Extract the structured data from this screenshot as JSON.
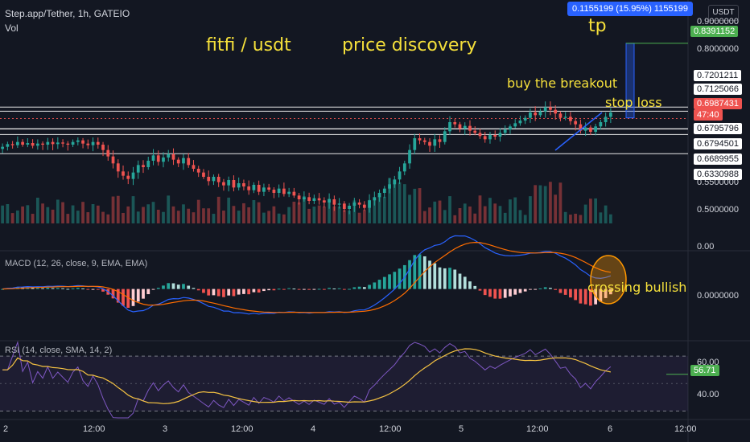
{
  "header": {
    "symbol": "Step.app/Tether, 1h, GATEIO",
    "volume_label": "Vol",
    "currency": "USDT"
  },
  "tooltip": {
    "text": "0.1155199 (15.95%) 1155199"
  },
  "annotations": {
    "title": "fitfi / usdt",
    "subtitle": "price discovery",
    "tp": "tp",
    "buy": "buy the breakout",
    "stop": "stop loss",
    "cross": "crossing bullish"
  },
  "indicators": {
    "macd_label": "MACD (12, 26, close, 9, EMA, EMA)",
    "rsi_label": "RSI (14, close, SMA, 14, 2)",
    "rsi_value": "56.71"
  },
  "price_tags": {
    "tp": "0.8391152",
    "p1": "0.7201211",
    "p2": "0.7125066",
    "current": "0.6987431",
    "countdown": "47:40",
    "p3": "0.6795796",
    "p4": "0.6794501",
    "p5": "0.6689955",
    "p6": "0.6330988"
  },
  "axis": {
    "price_ticks": [
      "0.9000000",
      "0.8000000",
      "0.5500000",
      "0.5000000"
    ],
    "macd_ticks": [
      "0.00",
      "0.0000000"
    ],
    "rsi_ticks": [
      "60.00",
      "40.00"
    ],
    "time_ticks": [
      "2",
      "12:00",
      "3",
      "12:00",
      "4",
      "12:00",
      "5",
      "12:00",
      "6",
      "12:00"
    ]
  },
  "colors": {
    "background": "#131722",
    "up": "#26a69a",
    "down": "#ef5350",
    "macd_line": "#2962ff",
    "signal_line": "#ff6d00",
    "rsi_line": "#7e57c2",
    "rsi_ma": "#f5c242",
    "annotation": "#f5e03b"
  },
  "chart_data": {
    "type": "candlestick",
    "symbol": "Step.app/Tether",
    "interval": "1h",
    "exchange": "GATEIO",
    "price_range": [
      0.47,
      0.92
    ],
    "close_series": [
      0.646,
      0.651,
      0.649,
      0.655,
      0.65,
      0.653,
      0.648,
      0.652,
      0.65,
      0.655,
      0.651,
      0.654,
      0.652,
      0.65,
      0.655,
      0.658,
      0.652,
      0.649,
      0.655,
      0.65,
      0.64,
      0.628,
      0.615,
      0.6,
      0.592,
      0.586,
      0.598,
      0.612,
      0.608,
      0.62,
      0.63,
      0.618,
      0.626,
      0.632,
      0.622,
      0.615,
      0.625,
      0.612,
      0.605,
      0.598,
      0.59,
      0.582,
      0.59,
      0.58,
      0.574,
      0.584,
      0.57,
      0.578,
      0.572,
      0.565,
      0.575,
      0.562,
      0.57,
      0.566,
      0.56,
      0.568,
      0.558,
      0.562,
      0.555,
      0.548,
      0.552,
      0.545,
      0.55,
      0.546,
      0.542,
      0.548,
      0.538,
      0.54,
      0.53,
      0.536,
      0.542,
      0.538,
      0.532,
      0.546,
      0.552,
      0.56,
      0.568,
      0.576,
      0.585,
      0.6,
      0.615,
      0.64,
      0.662,
      0.658,
      0.655,
      0.648,
      0.66,
      0.655,
      0.675,
      0.692,
      0.688,
      0.68,
      0.685,
      0.676,
      0.672,
      0.666,
      0.66,
      0.668,
      0.665,
      0.672,
      0.678,
      0.684,
      0.69,
      0.695,
      0.7,
      0.71,
      0.705,
      0.712,
      0.72,
      0.715,
      0.708,
      0.7,
      0.702,
      0.694,
      0.688,
      0.676,
      0.682,
      0.674,
      0.684,
      0.692,
      0.702,
      0.71
    ],
    "levels": [
      0.8391152,
      0.7201211,
      0.7125066,
      0.6987431,
      0.6795796,
      0.6794501,
      0.6689955,
      0.6330988
    ],
    "take_profit": 0.8391152,
    "target_change": "0.1155199 (15.95%)",
    "macd_range": [
      -0.03,
      0.02
    ],
    "rsi_range": [
      25,
      80
    ],
    "rsi_last": 56.71
  }
}
